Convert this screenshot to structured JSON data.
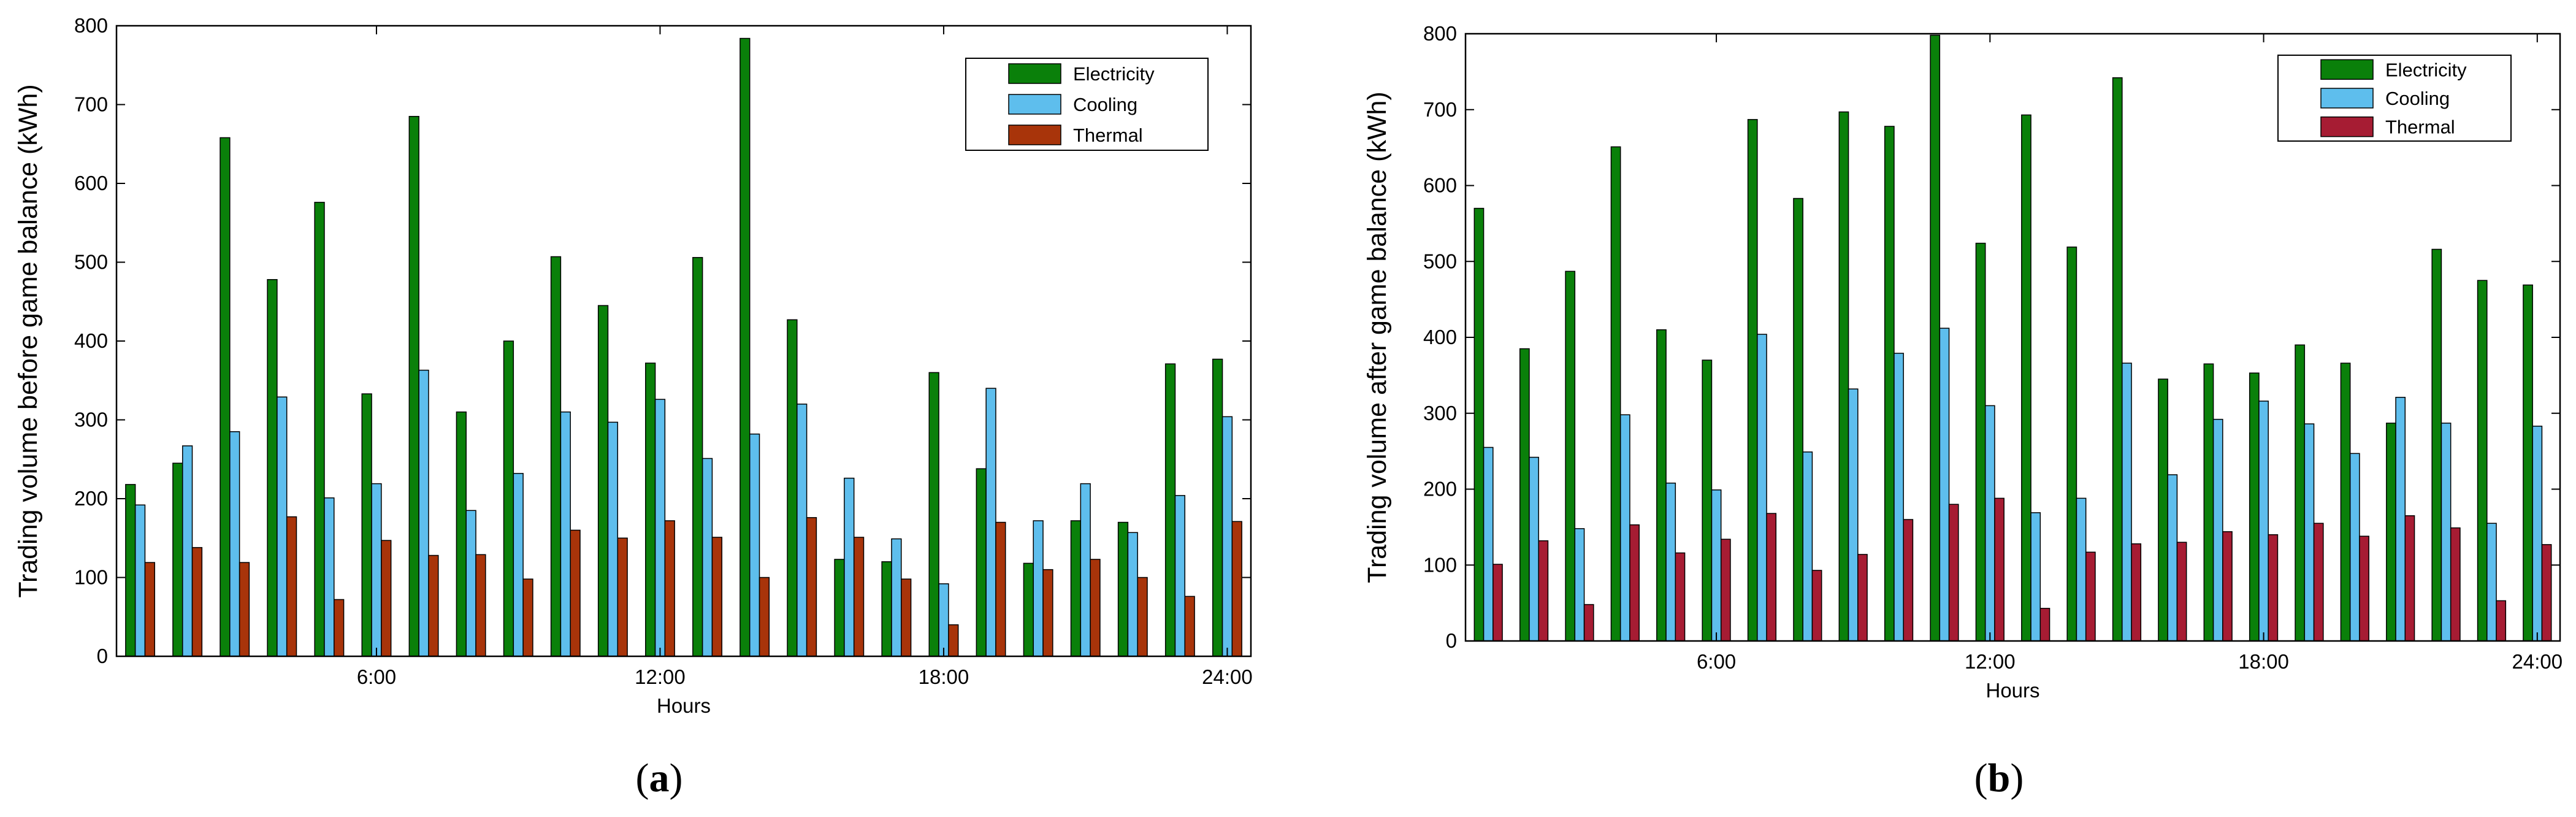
{
  "chart_data": [
    {
      "type": "bar",
      "panel_label_open": "(",
      "panel_label_letter": "a",
      "panel_label_close": ")",
      "xlabel": "Hours",
      "ylabel": "Trading volume before game balance (kWh)",
      "ylim": [
        0,
        800
      ],
      "yticks": [
        0,
        100,
        200,
        300,
        400,
        500,
        600,
        700,
        800
      ],
      "x": [
        1,
        2,
        3,
        4,
        5,
        6,
        7,
        8,
        9,
        10,
        11,
        12,
        13,
        14,
        15,
        16,
        17,
        18,
        19,
        20,
        21,
        22,
        23,
        24
      ],
      "xticks": [
        {
          "at": 6,
          "label": "6:00"
        },
        {
          "at": 12,
          "label": "12:00"
        },
        {
          "at": 18,
          "label": "18:00"
        },
        {
          "at": 24,
          "label": "24:00"
        }
      ],
      "legend": "top-right",
      "series": [
        {
          "name": "Electricity",
          "color": "#0a800a",
          "values": [
            218,
            245,
            658,
            478,
            576,
            333,
            685,
            310,
            400,
            507,
            445,
            372,
            506,
            784,
            427,
            123,
            120,
            360,
            238,
            118,
            172,
            170,
            371,
            377
          ]
        },
        {
          "name": "Cooling",
          "color": "#5ebeed",
          "values": [
            192,
            267,
            285,
            329,
            201,
            219,
            363,
            185,
            232,
            310,
            297,
            326,
            251,
            282,
            320,
            226,
            149,
            92,
            340,
            172,
            219,
            157,
            204,
            304
          ]
        },
        {
          "name": "Thermal",
          "color": "#a8340a",
          "values": [
            119,
            138,
            119,
            177,
            72,
            147,
            128,
            129,
            98,
            160,
            150,
            172,
            151,
            100,
            176,
            151,
            98,
            40,
            170,
            110,
            123,
            100,
            76,
            171
          ]
        }
      ]
    },
    {
      "type": "bar",
      "panel_label_open": "(",
      "panel_label_letter": "b",
      "panel_label_close": ")",
      "xlabel": "Hours",
      "ylabel": "Trading volume after game balance (kWh)",
      "ylim": [
        0,
        800
      ],
      "yticks": [
        0,
        100,
        200,
        300,
        400,
        500,
        600,
        700,
        800
      ],
      "x": [
        1,
        2,
        3,
        4,
        5,
        6,
        7,
        8,
        9,
        10,
        11,
        12,
        13,
        14,
        15,
        16,
        17,
        18,
        19,
        20,
        21,
        22,
        23,
        24
      ],
      "xticks": [
        {
          "at": 6,
          "label": "6:00"
        },
        {
          "at": 12,
          "label": "12:00"
        },
        {
          "at": 18,
          "label": "18:00"
        },
        {
          "at": 24,
          "label": "24:00"
        }
      ],
      "legend": "top-right",
      "series": [
        {
          "name": "Electricity",
          "color": "#0a800a",
          "values": [
            570,
            385,
            487,
            651,
            410,
            370,
            687,
            583,
            697,
            678,
            798,
            524,
            693,
            519,
            742,
            345,
            365,
            353,
            390,
            366,
            287,
            516,
            475,
            469
          ]
        },
        {
          "name": "Cooling",
          "color": "#5ebeed",
          "values": [
            255,
            242,
            148,
            298,
            208,
            199,
            404,
            249,
            332,
            379,
            412,
            310,
            169,
            188,
            366,
            219,
            292,
            316,
            286,
            247,
            321,
            287,
            155,
            283
          ]
        },
        {
          "name": "Thermal",
          "color": "#a61c33",
          "values": [
            101,
            132,
            48,
            153,
            116,
            134,
            168,
            93,
            114,
            160,
            180,
            188,
            43,
            117,
            128,
            130,
            144,
            140,
            155,
            138,
            165,
            149,
            53,
            127
          ]
        }
      ]
    }
  ]
}
